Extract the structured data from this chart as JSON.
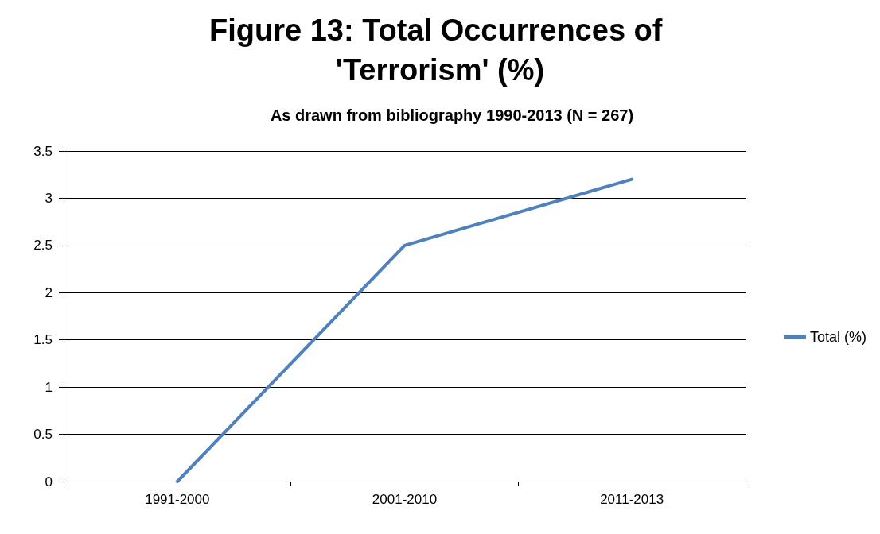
{
  "chart_data": {
    "type": "line",
    "title": "Figure 13: Total Occurrences of 'Terrorism' (%)",
    "subtitle": "As drawn from bibliography 1990-2013 (N = 267)",
    "categories": [
      "1991-2000",
      "2001-2010",
      "2011-2013"
    ],
    "series": [
      {
        "name": "Total (%)",
        "color": "#4f81bd",
        "values": [
          0,
          2.5,
          3.2
        ]
      }
    ],
    "ylim": [
      0,
      3.5
    ],
    "yticks": [
      0,
      0.5,
      1,
      1.5,
      2,
      2.5,
      3,
      3.5
    ],
    "grid": "y",
    "legend": "right",
    "marker": "none",
    "line_style": "solid"
  }
}
